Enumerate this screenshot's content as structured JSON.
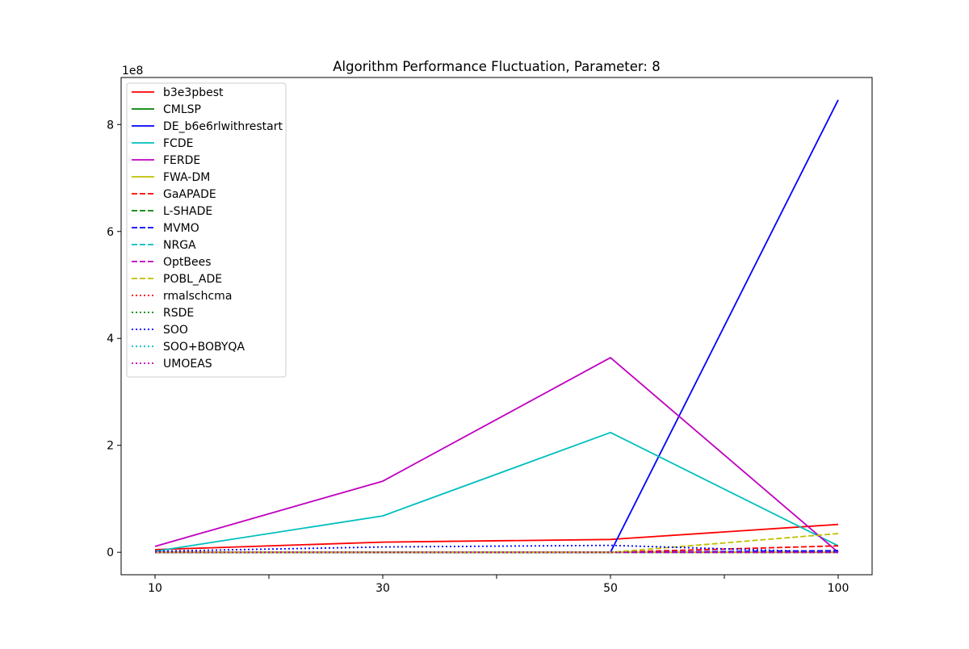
{
  "chart_data": {
    "type": "line",
    "title": "Algorithm Performance Fluctuation, Parameter: 8",
    "xlabel": "",
    "ylabel": "",
    "y_offset_label": "1e8",
    "y_scale": 100000000,
    "categories": [
      "10",
      "30",
      "50",
      "100"
    ],
    "x_minor_ticks": [
      20,
      40,
      75
    ],
    "y_ticks": [
      0,
      2,
      4,
      6,
      8
    ],
    "ylim": [
      -0.42,
      8.88
    ],
    "legend_position": "upper-left",
    "grid": false,
    "series": [
      {
        "name": "b3e3pbest",
        "color": "#ff0000",
        "dash": "solid",
        "values": [
          0.05,
          0.19,
          0.24,
          0.52
        ]
      },
      {
        "name": "CMLSP",
        "color": "#008000",
        "dash": "solid",
        "values": [
          0.0,
          0.0,
          0.0,
          0.0
        ]
      },
      {
        "name": "DE_b6e6rlwithrestart",
        "color": "#0000ff",
        "dash": "solid",
        "values": [
          0.0,
          0.0,
          0.0,
          8.46
        ]
      },
      {
        "name": "FCDE",
        "color": "#00bfbf",
        "dash": "solid",
        "values": [
          0.02,
          0.68,
          2.24,
          0.12
        ]
      },
      {
        "name": "FERDE",
        "color": "#bf00bf",
        "dash": "solid",
        "values": [
          0.11,
          1.33,
          3.64,
          0.0
        ]
      },
      {
        "name": "FWA-DM",
        "color": "#bfbf00",
        "dash": "solid",
        "values": [
          0.0,
          0.0,
          0.0,
          0.0
        ]
      },
      {
        "name": "GaAPADE",
        "color": "#ff0000",
        "dash": "dashed",
        "values": [
          0.0,
          0.0,
          0.0,
          0.12
        ]
      },
      {
        "name": "L-SHADE",
        "color": "#008000",
        "dash": "dashed",
        "values": [
          0.0,
          0.0,
          0.0,
          0.0
        ]
      },
      {
        "name": "MVMO",
        "color": "#0000ff",
        "dash": "dashed",
        "values": [
          0.0,
          0.0,
          0.0,
          0.03
        ]
      },
      {
        "name": "NRGA",
        "color": "#00bfbf",
        "dash": "dashed",
        "values": [
          0.0,
          0.0,
          0.0,
          0.0
        ]
      },
      {
        "name": "OptBees",
        "color": "#bf00bf",
        "dash": "dashed",
        "values": [
          0.0,
          0.0,
          0.0,
          0.0
        ]
      },
      {
        "name": "POBL_ADE",
        "color": "#bfbf00",
        "dash": "dashed",
        "values": [
          0.0,
          0.0,
          0.0,
          0.35
        ]
      },
      {
        "name": "rmalschcma",
        "color": "#ff0000",
        "dash": "dotted",
        "values": [
          0.0,
          0.0,
          0.0,
          0.0
        ]
      },
      {
        "name": "RSDE",
        "color": "#008000",
        "dash": "dotted",
        "values": [
          0.0,
          0.0,
          0.0,
          0.0
        ]
      },
      {
        "name": "SOO",
        "color": "#0000ff",
        "dash": "dotted",
        "values": [
          0.02,
          0.1,
          0.13,
          0.0
        ]
      },
      {
        "name": "SOO+BOBYQA",
        "color": "#00bfbf",
        "dash": "dotted",
        "values": [
          0.0,
          0.0,
          0.0,
          0.0
        ]
      },
      {
        "name": "UMOEAS",
        "color": "#bf00bf",
        "dash": "dotted",
        "values": [
          0.0,
          0.0,
          0.0,
          0.0
        ]
      }
    ]
  }
}
